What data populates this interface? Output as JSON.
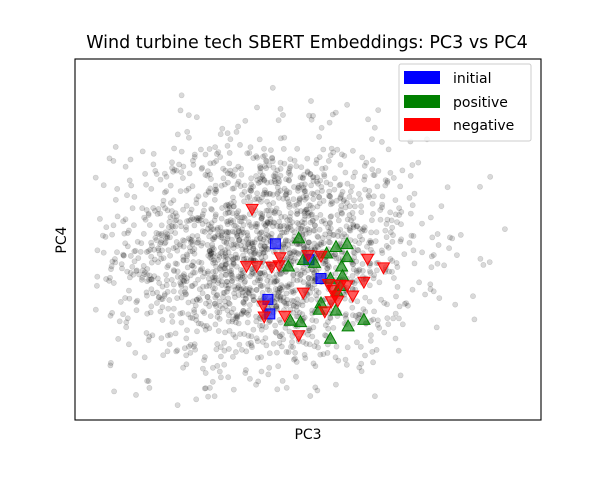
{
  "chart_data": {
    "type": "scatter",
    "title": "Wind turbine tech SBERT Embeddings: PC3 vs PC4",
    "xlabel": "PC3",
    "ylabel": "PC4",
    "grid": false,
    "ticks_visible": false,
    "xlim": [
      0,
      100
    ],
    "ylim": [
      0,
      100
    ],
    "legend": {
      "placement": "top-right",
      "entries": [
        {
          "label": "initial",
          "color": "#0000ff"
        },
        {
          "label": "positive",
          "color": "#008000"
        },
        {
          "label": "negative",
          "color": "#ff0000"
        }
      ]
    },
    "background_points": {
      "color": "#000000",
      "alpha": 0.15,
      "count": 2000,
      "center": [
        41,
        46
      ],
      "spread": [
        16,
        16
      ],
      "x_range": [
        4,
        96
      ],
      "y_range": [
        4,
        96
      ]
    },
    "series": [
      {
        "name": "initial",
        "marker": "square",
        "color": "#0000ff",
        "x": [
          43.0,
          50.2,
          52.8,
          41.4,
          41.8
        ],
        "y": [
          48.8,
          44.4,
          39.2,
          33.4,
          29.4
        ]
      },
      {
        "name": "positive",
        "marker": "triangle-up",
        "color": "#008000",
        "x": [
          48.0,
          45.8,
          49.0,
          51.4,
          54.0,
          56.0,
          58.4,
          58.4,
          57.2,
          57.4,
          54.8,
          57.0,
          56.2,
          52.8,
          52.4,
          56.0,
          46.2,
          48.4,
          58.6,
          62.0,
          54.8
        ],
        "y": [
          50.4,
          42.6,
          44.4,
          43.6,
          46.2,
          48.0,
          48.8,
          45.2,
          42.6,
          40.0,
          39.2,
          37.2,
          35.8,
          32.4,
          30.6,
          30.4,
          27.6,
          27.2,
          26.0,
          27.8,
          22.6
        ]
      },
      {
        "name": "negative",
        "marker": "triangle-down",
        "color": "#ff0000",
        "x": [
          38.0,
          36.8,
          39.0,
          42.2,
          44.0,
          43.8,
          50.0,
          52.8,
          54.4,
          57.0,
          62.8,
          66.2,
          62.0,
          55.4,
          55.8,
          58.4,
          56.4,
          59.6,
          55.0,
          53.6,
          49.0,
          40.4,
          45.0,
          40.6,
          48.0
        ],
        "y": [
          58.4,
          42.6,
          42.6,
          42.4,
          45.0,
          42.8,
          45.6,
          45.4,
          37.6,
          37.4,
          44.6,
          42.2,
          38.2,
          36.0,
          34.4,
          37.2,
          33.0,
          34.4,
          32.8,
          30.0,
          35.2,
          31.6,
          28.8,
          28.6,
          23.4
        ]
      }
    ]
  }
}
